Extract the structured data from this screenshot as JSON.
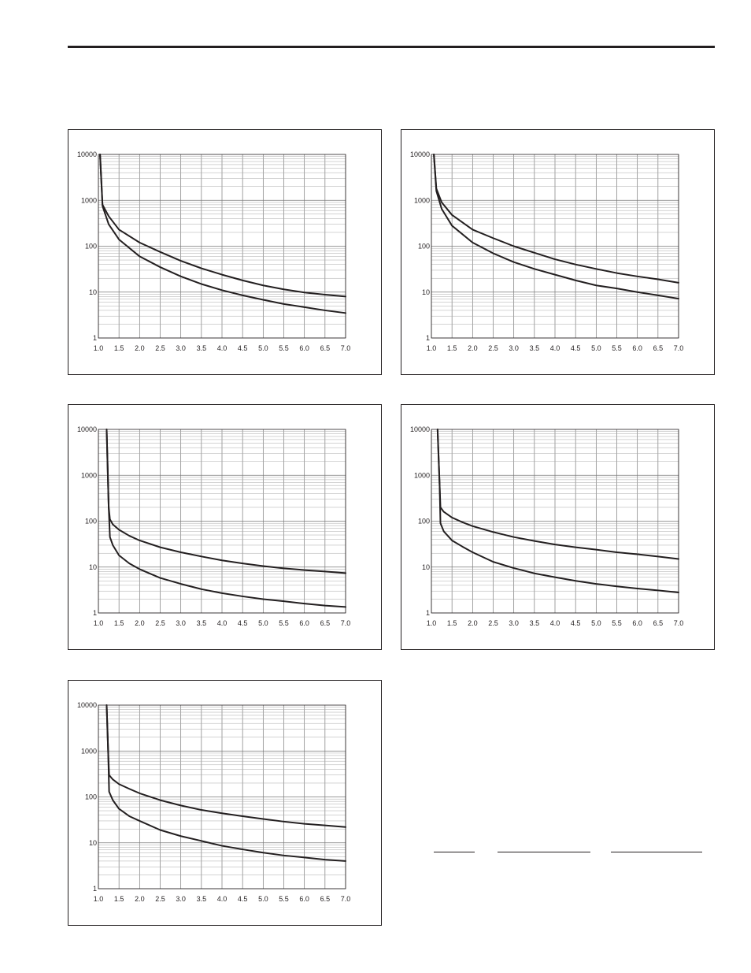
{
  "chart_data": [
    {
      "type": "line",
      "title": "",
      "xlabel": "",
      "ylabel": "",
      "xlim": [
        1.0,
        7.0
      ],
      "ylim": [
        1,
        10000
      ],
      "yscale": "log",
      "grid": true,
      "x_ticks": [
        "1.0",
        "1.5",
        "2.0",
        "2.5",
        "3.0",
        "3.5",
        "4.0",
        "4.5",
        "5.0",
        "5.5",
        "6.0",
        "6.5",
        "7.0"
      ],
      "y_ticks": [
        "1",
        "10",
        "100",
        "1000",
        "10000"
      ],
      "series": [
        {
          "x": [
            1.04,
            1.1,
            1.25,
            1.5,
            2.0,
            2.5,
            3.0,
            3.5,
            4.0,
            4.5,
            5.0,
            5.5,
            6.0,
            6.5,
            7.0
          ],
          "values": [
            10000,
            800,
            450,
            230,
            120,
            75,
            48,
            33,
            24,
            18,
            14,
            11.5,
            9.8,
            8.8,
            8.0
          ]
        },
        {
          "x": [
            1.04,
            1.1,
            1.25,
            1.5,
            2.0,
            2.5,
            3.0,
            3.5,
            4.0,
            4.5,
            5.0,
            5.5,
            6.0,
            6.5,
            7.0
          ],
          "values": [
            10000,
            750,
            300,
            140,
            60,
            35,
            22,
            15,
            11,
            8.5,
            6.8,
            5.5,
            4.7,
            4.0,
            3.5
          ]
        }
      ]
    },
    {
      "type": "line",
      "title": "",
      "xlabel": "",
      "ylabel": "",
      "xlim": [
        1.0,
        7.0
      ],
      "ylim": [
        1,
        10000
      ],
      "yscale": "log",
      "grid": true,
      "x_ticks": [
        "1.0",
        "1.5",
        "2.0",
        "2.5",
        "3.0",
        "3.5",
        "4.0",
        "4.5",
        "5.0",
        "5.5",
        "6.0",
        "6.5",
        "7.0"
      ],
      "y_ticks": [
        "1",
        "10",
        "100",
        "1000",
        "10000"
      ],
      "series": [
        {
          "x": [
            1.06,
            1.12,
            1.25,
            1.5,
            2.0,
            2.5,
            3.0,
            3.5,
            4.0,
            4.5,
            5.0,
            5.5,
            6.0,
            6.5,
            7.0
          ],
          "values": [
            10000,
            1800,
            900,
            480,
            230,
            150,
            100,
            72,
            52,
            40,
            32,
            26,
            22,
            19,
            16
          ]
        },
        {
          "x": [
            1.06,
            1.12,
            1.25,
            1.5,
            2.0,
            2.5,
            3.0,
            3.5,
            4.0,
            4.5,
            5.0,
            5.5,
            6.0,
            6.5,
            7.0
          ],
          "values": [
            10000,
            1600,
            650,
            280,
            120,
            70,
            45,
            32,
            24,
            18,
            14,
            12,
            10,
            8.5,
            7.2
          ]
        }
      ]
    },
    {
      "type": "line",
      "title": "",
      "xlabel": "",
      "ylabel": "",
      "xlim": [
        1.0,
        7.0
      ],
      "ylim": [
        1,
        10000
      ],
      "yscale": "log",
      "grid": true,
      "x_ticks": [
        "1.0",
        "1.5",
        "2.0",
        "2.5",
        "3.0",
        "3.5",
        "4.0",
        "4.5",
        "5.0",
        "5.5",
        "6.0",
        "6.5",
        "7.0"
      ],
      "y_ticks": [
        "1",
        "10",
        "100",
        "1000",
        "10000"
      ],
      "series": [
        {
          "x": [
            1.2,
            1.25,
            1.28,
            1.35,
            1.5,
            1.75,
            2.0,
            2.5,
            3.0,
            3.5,
            4.0,
            4.5,
            5.0,
            5.5,
            6.0,
            6.5,
            7.0
          ],
          "values": [
            10000,
            200,
            110,
            85,
            65,
            48,
            38,
            27,
            21,
            17,
            14,
            12,
            10.5,
            9.4,
            8.6,
            8.0,
            7.4
          ]
        },
        {
          "x": [
            1.2,
            1.25,
            1.28,
            1.35,
            1.5,
            1.75,
            2.0,
            2.5,
            3.0,
            3.5,
            4.0,
            4.5,
            5.0,
            5.5,
            6.0,
            6.5,
            7.0
          ],
          "values": [
            10000,
            200,
            45,
            30,
            18,
            12,
            9,
            5.8,
            4.3,
            3.3,
            2.7,
            2.3,
            2.0,
            1.8,
            1.6,
            1.45,
            1.35
          ]
        }
      ]
    },
    {
      "type": "line",
      "title": "",
      "xlabel": "",
      "ylabel": "",
      "xlim": [
        1.0,
        7.0
      ],
      "ylim": [
        1,
        10000
      ],
      "yscale": "log",
      "grid": true,
      "x_ticks": [
        "1.0",
        "1.5",
        "2.0",
        "2.5",
        "3.0",
        "3.5",
        "4.0",
        "4.5",
        "5.0",
        "5.5",
        "6.0",
        "6.5",
        "7.0"
      ],
      "y_ticks": [
        "1",
        "10",
        "100",
        "1000",
        "10000"
      ],
      "series": [
        {
          "x": [
            1.15,
            1.2,
            1.22,
            1.3,
            1.5,
            1.75,
            2.0,
            2.5,
            3.0,
            3.5,
            4.0,
            4.5,
            5.0,
            5.5,
            6.0,
            6.5,
            7.0
          ],
          "values": [
            10000,
            600,
            200,
            160,
            120,
            95,
            78,
            58,
            45,
            37,
            31,
            27,
            24,
            21,
            19,
            17,
            15
          ]
        },
        {
          "x": [
            1.15,
            1.2,
            1.22,
            1.3,
            1.5,
            1.75,
            2.0,
            2.5,
            3.0,
            3.5,
            4.0,
            4.5,
            5.0,
            5.5,
            6.0,
            6.5,
            7.0
          ],
          "values": [
            10000,
            600,
            90,
            60,
            38,
            28,
            21,
            13,
            9.5,
            7.3,
            6,
            5,
            4.3,
            3.8,
            3.4,
            3.1,
            2.8
          ]
        }
      ]
    },
    {
      "type": "line",
      "title": "",
      "xlabel": "",
      "ylabel": "",
      "xlim": [
        1.0,
        7.0
      ],
      "ylim": [
        1,
        10000
      ],
      "yscale": "log",
      "grid": true,
      "x_ticks": [
        "1.0",
        "1.5",
        "2.0",
        "2.5",
        "3.0",
        "3.5",
        "4.0",
        "4.5",
        "5.0",
        "5.5",
        "6.0",
        "6.5",
        "7.0"
      ],
      "y_ticks": [
        "1",
        "10",
        "100",
        "1000",
        "10000"
      ],
      "series": [
        {
          "x": [
            1.2,
            1.24,
            1.26,
            1.35,
            1.5,
            1.75,
            2.0,
            2.5,
            3.0,
            3.5,
            4.0,
            4.5,
            5.0,
            5.5,
            6.0,
            6.5,
            7.0
          ],
          "values": [
            10000,
            800,
            300,
            240,
            190,
            150,
            120,
            85,
            65,
            52,
            44,
            38,
            33,
            29,
            26,
            24,
            22
          ]
        },
        {
          "x": [
            1.2,
            1.24,
            1.26,
            1.35,
            1.5,
            1.75,
            2.0,
            2.5,
            3.0,
            3.5,
            4.0,
            4.5,
            5.0,
            5.5,
            6.0,
            6.5,
            7.0
          ],
          "values": [
            10000,
            800,
            130,
            85,
            55,
            38,
            30,
            19,
            14,
            11,
            8.6,
            7.2,
            6.1,
            5.3,
            4.8,
            4.3,
            4.0
          ]
        }
      ]
    }
  ]
}
